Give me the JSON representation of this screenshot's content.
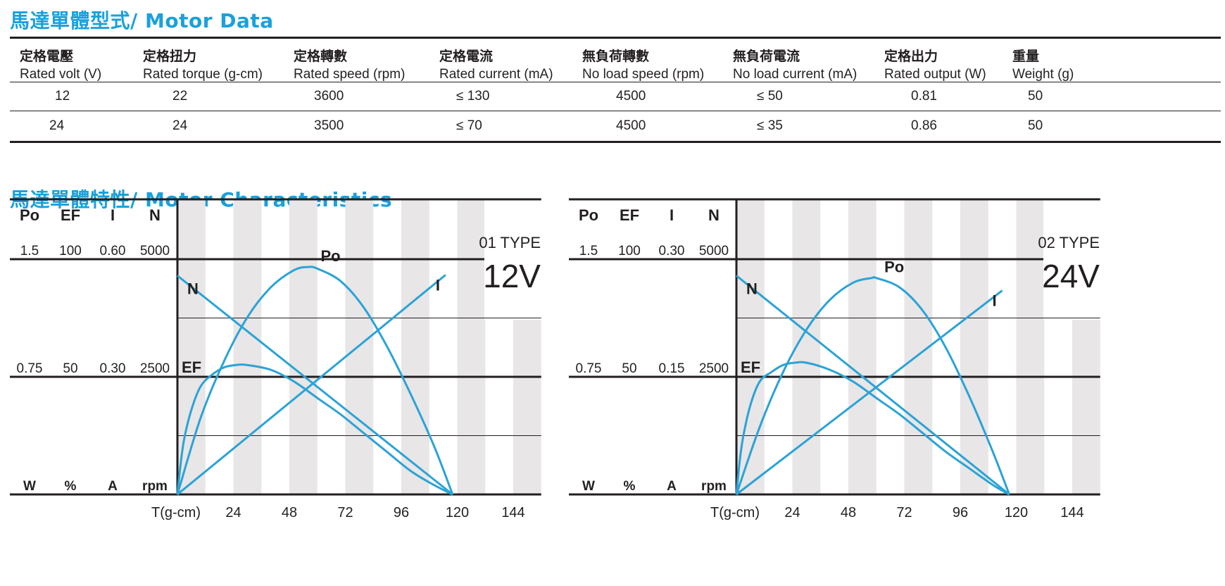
{
  "motor_data": {
    "title": "馬達單體型式/ Motor Data",
    "columns": [
      {
        "zh": "定格電壓",
        "en": "Rated volt (V)"
      },
      {
        "zh": "定格扭力",
        "en": "Rated torque (g-cm)"
      },
      {
        "zh": "定格轉數",
        "en": "Rated speed (rpm)"
      },
      {
        "zh": "定格電流",
        "en": "Rated current (mA)"
      },
      {
        "zh": "無負荷轉數",
        "en": "No load speed (rpm)"
      },
      {
        "zh": "無負荷電流",
        "en": "No load current (mA)"
      },
      {
        "zh": "定格出力",
        "en": "Rated output (W)"
      },
      {
        "zh": "重量",
        "en": "Weight (g)"
      }
    ],
    "rows": [
      [
        "12",
        "22",
        "3600",
        "≤ 130",
        "4500",
        "≤ 50",
        "0.81",
        "50"
      ],
      [
        "24",
        "24",
        "3500",
        "≤ 70",
        "4500",
        "≤ 35",
        "0.86",
        "50"
      ]
    ]
  },
  "characteristics": {
    "title": "馬達單體特性/ Motor Characteristics"
  },
  "colors": {
    "accent": "#1aa1db",
    "curve": "#2ba3d6",
    "band": "#e8e6e7",
    "ink": "#231f20"
  },
  "chart_data": [
    {
      "type": "line",
      "type_label": "01 TYPE",
      "voltage_label": "12V",
      "axis_headers": [
        "Po",
        "EF",
        "I",
        "N"
      ],
      "axis_top": [
        "1.5",
        "100",
        "0.60",
        "5000"
      ],
      "axis_mid": [
        "0.75",
        "50",
        "0.30",
        "2500"
      ],
      "axis_units": [
        "W",
        "%",
        "A",
        "rpm"
      ],
      "xlabel": "T(g-cm)",
      "x_ticks": [
        "24",
        "48",
        "72",
        "96",
        "120",
        "144"
      ],
      "xlim": [
        0,
        156
      ],
      "grid": true,
      "series": [
        {
          "name": "N",
          "x": [
            0,
            118
          ],
          "y": [
            4650,
            0
          ]
        },
        {
          "name": "I",
          "x": [
            0,
            115
          ],
          "y": [
            0,
            0.56
          ]
        },
        {
          "name": "Po",
          "x": [
            0,
            10,
            20,
            30,
            40,
            50,
            56,
            60,
            70,
            80,
            90,
            100,
            110,
            118
          ],
          "y": [
            0,
            0.49,
            0.85,
            1.13,
            1.32,
            1.43,
            1.45,
            1.44,
            1.36,
            1.19,
            0.94,
            0.64,
            0.31,
            0
          ]
        },
        {
          "name": "EF",
          "x": [
            0,
            1.5,
            3,
            6,
            10,
            15,
            20,
            25,
            30,
            40,
            50,
            60,
            70,
            80,
            90,
            100,
            110,
            118
          ],
          "y": [
            0,
            14,
            24,
            36,
            46,
            51,
            54,
            55,
            55,
            53,
            48,
            41,
            34,
            26,
            18,
            10,
            4,
            0
          ]
        }
      ]
    },
    {
      "type": "line",
      "type_label": "02 TYPE",
      "voltage_label": "24V",
      "axis_headers": [
        "Po",
        "EF",
        "I",
        "N"
      ],
      "axis_top": [
        "1.5",
        "100",
        "0.30",
        "5000"
      ],
      "axis_mid": [
        "0.75",
        "50",
        "0.15",
        "2500"
      ],
      "axis_units": [
        "W",
        "%",
        "A",
        "rpm"
      ],
      "xlabel": "T(g-cm)",
      "x_ticks": [
        "24",
        "48",
        "72",
        "96",
        "120",
        "144"
      ],
      "xlim": [
        0,
        156
      ],
      "grid": true,
      "series": [
        {
          "name": "N",
          "x": [
            0,
            117
          ],
          "y": [
            4650,
            0
          ]
        },
        {
          "name": "I",
          "x": [
            0,
            114
          ],
          "y": [
            0,
            0.26
          ]
        },
        {
          "name": "Po",
          "x": [
            0,
            10,
            20,
            30,
            40,
            50,
            58,
            60,
            70,
            80,
            90,
            100,
            110,
            117
          ],
          "y": [
            0,
            0.43,
            0.78,
            1.05,
            1.24,
            1.35,
            1.38,
            1.38,
            1.32,
            1.17,
            0.93,
            0.62,
            0.27,
            0
          ]
        },
        {
          "name": "EF",
          "x": [
            0,
            1.5,
            3,
            6,
            10,
            15,
            20,
            25,
            30,
            40,
            50,
            60,
            70,
            80,
            90,
            100,
            110,
            117
          ],
          "y": [
            0,
            15,
            25,
            38,
            48,
            52,
            55,
            56,
            56,
            53,
            48,
            41,
            34,
            26,
            18,
            11,
            4,
            0
          ]
        }
      ]
    }
  ]
}
